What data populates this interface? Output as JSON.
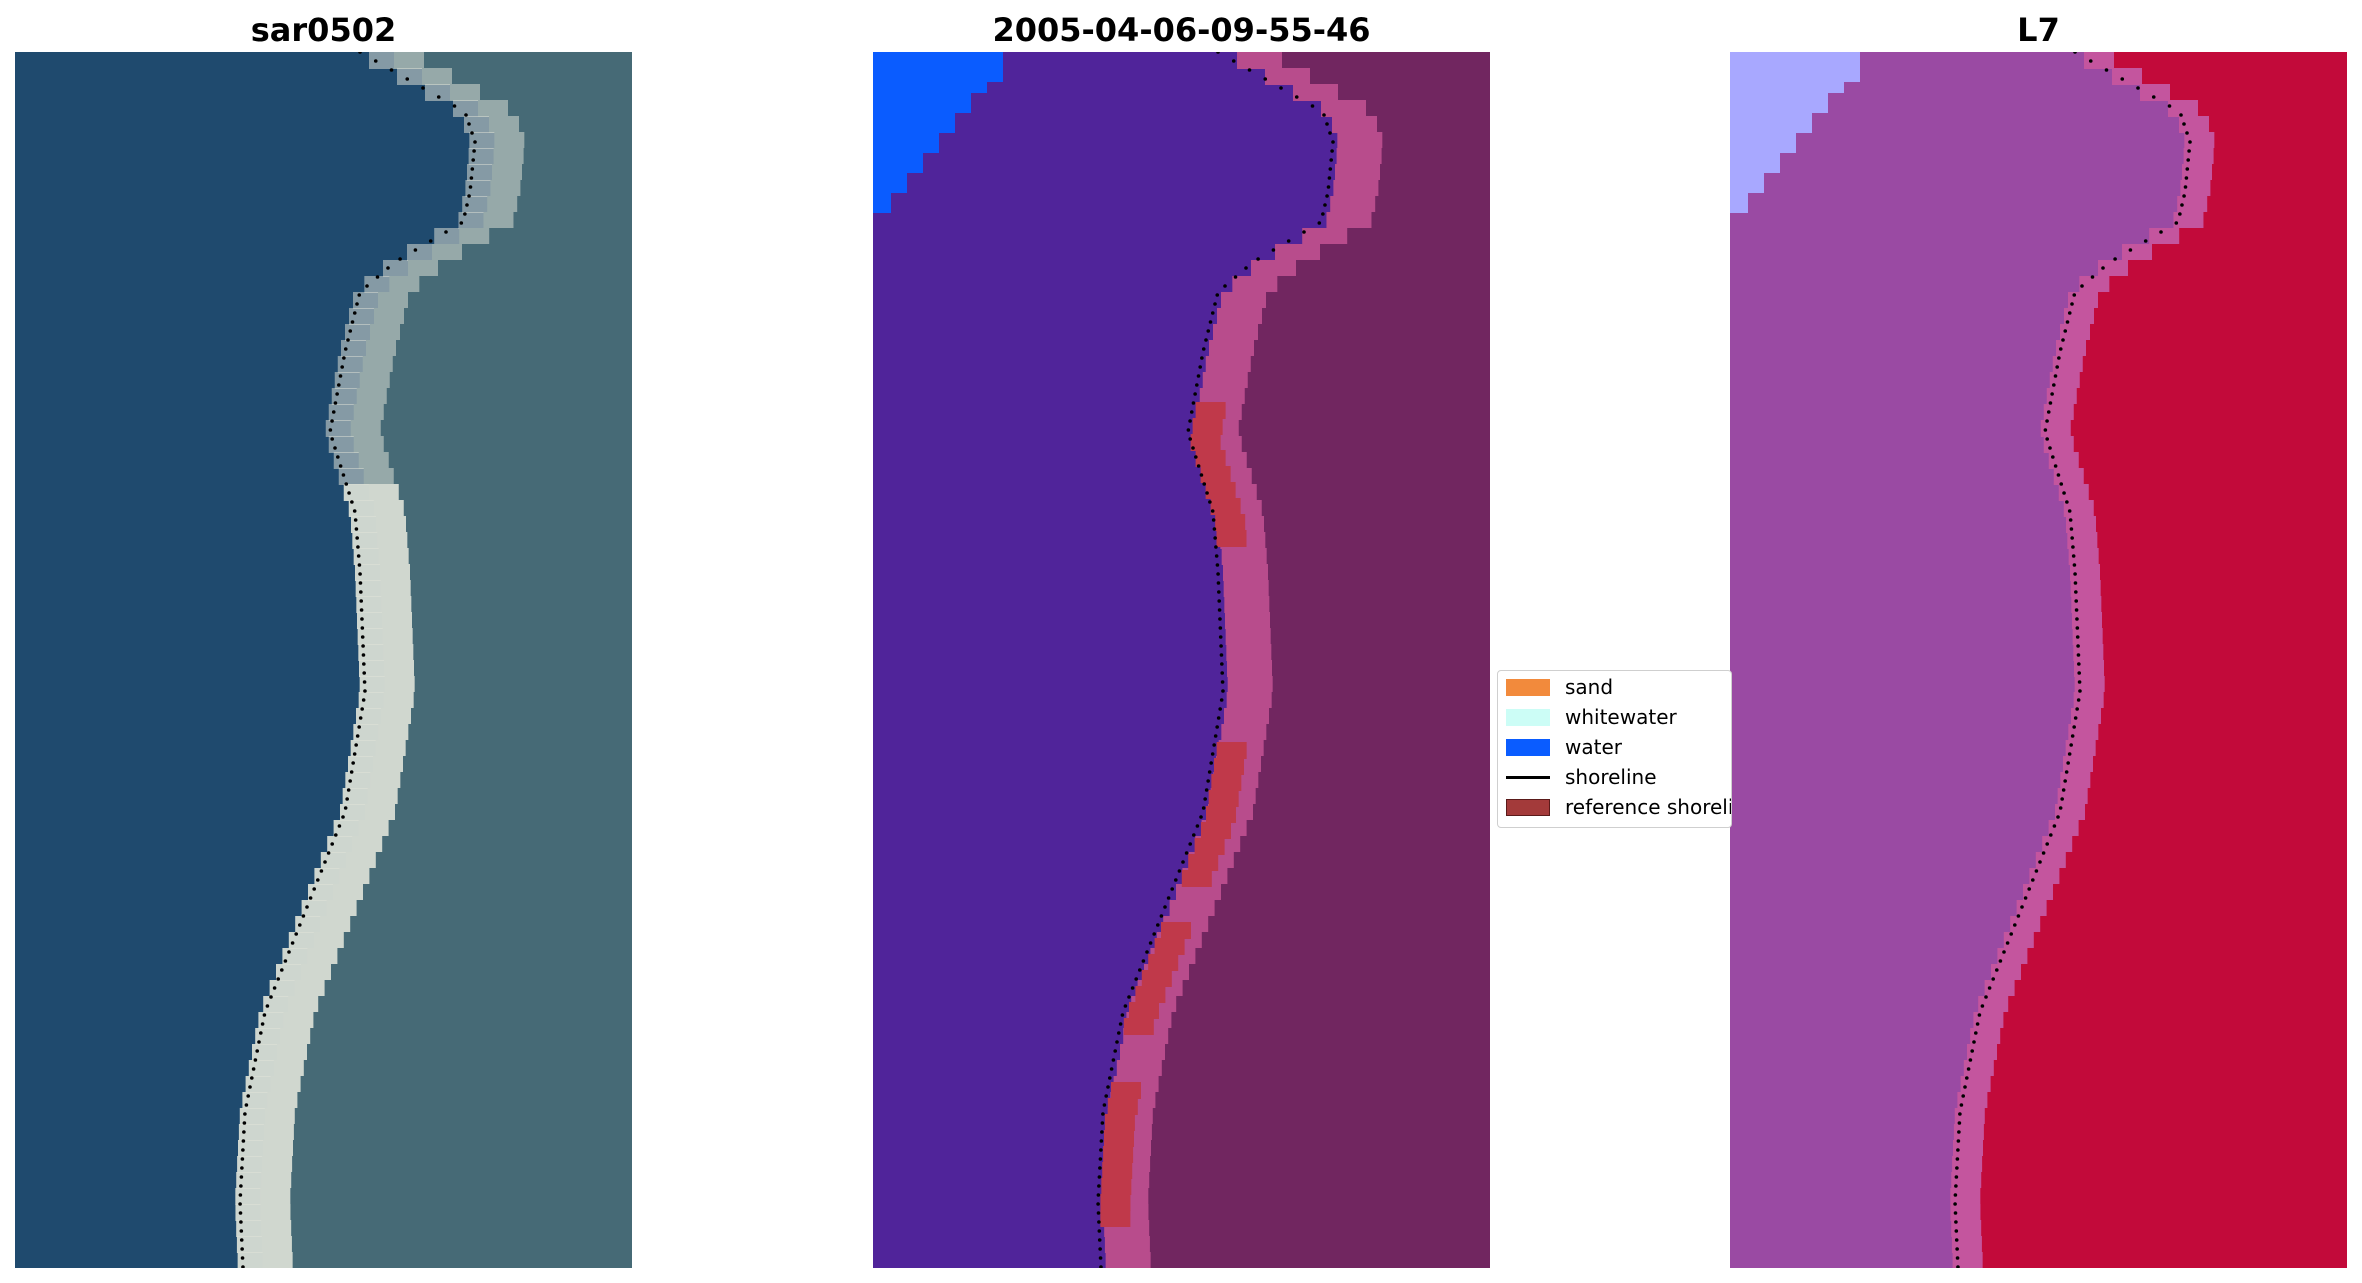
{
  "panels": [
    {
      "title": "sar0502"
    },
    {
      "title": "2005-04-06-09-55-46"
    },
    {
      "title": "L7"
    }
  ],
  "legend": {
    "items": [
      {
        "label": "sand",
        "color": "#f28a3c",
        "kind": "patch"
      },
      {
        "label": "whitewater",
        "color": "#ccfdf6",
        "kind": "patch"
      },
      {
        "label": "water",
        "color": "#0a5cff",
        "kind": "patch"
      },
      {
        "label": "shoreline",
        "color": "#000000",
        "kind": "line"
      },
      {
        "label": "reference shoreline",
        "color": "#a33a3a",
        "kind": "patch"
      }
    ]
  },
  "colors": {
    "rgb_water": "#1f4a6e",
    "rgb_land": "#466a76",
    "rgb_beach": "#d8ddd4",
    "class_water": "#50249a",
    "class_land": "#712660",
    "class_beach": "#b84c8c",
    "class_water_bright": "#0a5cff",
    "class_reference": "#c0394a",
    "swir_water": "#9a4aa3",
    "swir_land": "#c20a3a",
    "swir_beach": "#c4559e",
    "swir_water_bright": "#a8a8ff"
  }
}
